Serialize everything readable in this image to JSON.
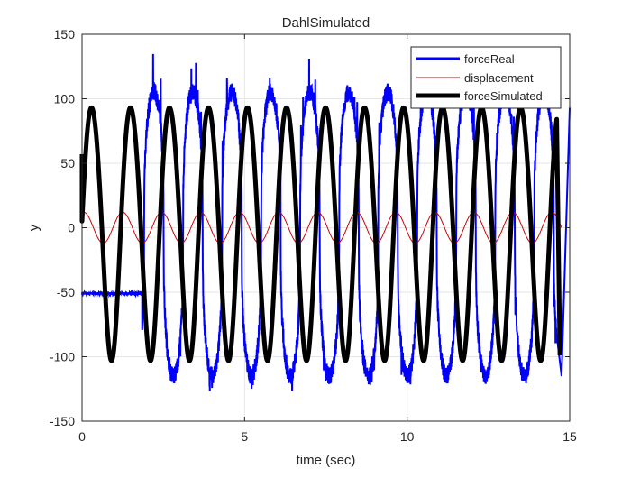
{
  "chart_data": {
    "type": "line",
    "title": "DahlSimulated",
    "xlabel": "time (sec)",
    "ylabel": "y",
    "xlim": [
      0,
      15
    ],
    "ylim": [
      -150,
      150
    ],
    "xticks": [
      0,
      5,
      10,
      15
    ],
    "yticks": [
      -150,
      -100,
      -50,
      0,
      50,
      100,
      150
    ],
    "grid": true,
    "legend_position": "top-right",
    "series": [
      {
        "name": "forceReal",
        "color": "#0000ff",
        "style": "noisy-square-wave",
        "initial_value": -51,
        "initial_until": 1.85,
        "oscillation_start": 1.85,
        "oscillation_end": 14.6,
        "high_level": 105,
        "low_level": -115,
        "peak_max": 137,
        "trough_min": -130,
        "period": 1.2,
        "end_spike_to": 93
      },
      {
        "name": "displacement",
        "color": "#cc0000",
        "style": "sine",
        "amplitude": 12,
        "offset": 0,
        "period": 1.2,
        "phase_start": 0.05,
        "x_end": 14.75
      },
      {
        "name": "forceSimulated",
        "color": "#000000",
        "style": "hysteresis-loops",
        "start_value": 57,
        "loop_max": 108,
        "loop_min": -108,
        "period": 1.2,
        "loop_start": 0,
        "loop_end": 14.6,
        "end_value": -99
      }
    ]
  }
}
